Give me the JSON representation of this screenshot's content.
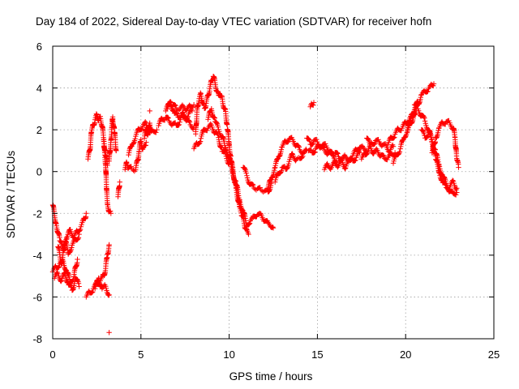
{
  "chart_data": {
    "type": "scatter",
    "title": "Day 184 of 2022, Sidereal Day-to-day VTEC variation (SDTVAR) for receiver hofn",
    "xlabel": "GPS time / hours",
    "ylabel": "SDTVAR / TECUs",
    "xlim": [
      0,
      25
    ],
    "ylim": [
      -8,
      6
    ],
    "xticks": [
      0,
      5,
      10,
      15,
      20,
      25
    ],
    "yticks": [
      -8,
      -6,
      -4,
      -2,
      0,
      2,
      4,
      6
    ],
    "grid": true,
    "marker": "+",
    "color": "#ff0000",
    "segments": [
      [
        [
          0.0,
          -1.6
        ],
        [
          0.2,
          -2.5
        ],
        [
          0.4,
          -3.3
        ],
        [
          0.6,
          -3.8
        ],
        [
          0.8,
          -3.2
        ],
        [
          1.0,
          -2.8
        ],
        [
          1.2,
          -3.1
        ],
        [
          1.4,
          -2.9
        ],
        [
          1.6,
          -2.6
        ],
        [
          1.8,
          -2.3
        ],
        [
          1.9,
          -2.0
        ]
      ],
      [
        [
          0.0,
          -4.8
        ],
        [
          0.2,
          -4.6
        ],
        [
          0.4,
          -4.4
        ],
        [
          0.6,
          -4.3
        ],
        [
          0.8,
          -4.8
        ],
        [
          1.0,
          -5.3
        ],
        [
          1.2,
          -5.0
        ],
        [
          1.4,
          -4.2
        ]
      ],
      [
        [
          0.1,
          -5.1
        ],
        [
          0.3,
          -4.9
        ],
        [
          0.5,
          -5.2
        ],
        [
          0.7,
          -4.9
        ],
        [
          0.9,
          -5.4
        ],
        [
          1.1,
          -5.7
        ],
        [
          1.3,
          -5.1
        ],
        [
          1.5,
          -5.5
        ]
      ],
      [
        [
          0.3,
          -3.6
        ],
        [
          0.5,
          -4.4
        ],
        [
          0.7,
          -3.3
        ],
        [
          0.9,
          -3.9
        ],
        [
          1.1,
          -3.5
        ],
        [
          1.3,
          -3.3
        ],
        [
          1.5,
          -3.0
        ]
      ],
      [
        [
          1.9,
          -6.0
        ],
        [
          2.1,
          -5.8
        ],
        [
          2.3,
          -5.6
        ],
        [
          2.5,
          -5.4
        ],
        [
          2.7,
          -5.2
        ],
        [
          2.9,
          -5.0
        ],
        [
          3.0,
          -4.6
        ],
        [
          3.1,
          -4.0
        ],
        [
          3.2,
          -3.5
        ]
      ],
      [
        [
          2.4,
          -5.6
        ],
        [
          2.6,
          -5.1
        ],
        [
          2.8,
          -5.6
        ],
        [
          3.0,
          -5.5
        ],
        [
          3.2,
          -5.9
        ]
      ],
      [
        [
          3.2,
          -7.7
        ]
      ],
      [
        [
          2.0,
          0.6
        ],
        [
          2.1,
          1.0
        ],
        [
          2.2,
          1.9
        ],
        [
          2.3,
          2.2
        ],
        [
          2.4,
          2.5
        ],
        [
          2.5,
          2.7
        ],
        [
          2.6,
          2.5
        ],
        [
          2.7,
          2.6
        ],
        [
          2.8,
          2.2
        ],
        [
          2.9,
          1.5
        ],
        [
          3.0,
          0.8
        ],
        [
          3.1,
          0.3
        ]
      ],
      [
        [
          2.9,
          1.2
        ],
        [
          3.0,
          0.4
        ],
        [
          3.05,
          -0.8
        ],
        [
          3.1,
          -1.5
        ],
        [
          3.2,
          -1.9
        ],
        [
          3.3,
          -2.0
        ]
      ],
      [
        [
          3.2,
          0.5
        ],
        [
          3.3,
          1.5
        ],
        [
          3.35,
          2.1
        ],
        [
          3.4,
          2.6
        ],
        [
          3.5,
          1.9
        ],
        [
          3.6,
          1.0
        ]
      ],
      [
        [
          3.7,
          -1.2
        ],
        [
          3.8,
          -0.5
        ]
      ],
      [
        [
          4.1,
          0.1
        ],
        [
          4.2,
          0.4
        ],
        [
          4.3,
          0.2
        ],
        [
          4.5,
          0.1
        ],
        [
          4.7,
          0.1
        ],
        [
          4.8,
          0.5
        ],
        [
          4.9,
          1.0
        ],
        [
          5.0,
          1.5
        ],
        [
          5.1,
          1.1
        ],
        [
          5.2,
          1.2
        ],
        [
          5.3,
          1.4
        ]
      ],
      [
        [
          4.3,
          0.8
        ],
        [
          4.5,
          1.3
        ],
        [
          4.7,
          1.7
        ],
        [
          4.9,
          2.0
        ],
        [
          5.1,
          2.2
        ],
        [
          5.3,
          2.3
        ],
        [
          5.5,
          1.9
        ],
        [
          5.7,
          1.9
        ],
        [
          5.9,
          2.0
        ]
      ],
      [
        [
          5.2,
          1.6
        ],
        [
          5.3,
          2.1
        ],
        [
          5.4,
          1.8
        ],
        [
          5.5,
          2.3
        ],
        [
          5.6,
          2.0
        ]
      ],
      [
        [
          5.5,
          2.9
        ]
      ],
      [
        [
          6.0,
          2.2
        ],
        [
          6.2,
          2.5
        ],
        [
          6.4,
          2.6
        ],
        [
          6.6,
          2.4
        ],
        [
          6.8,
          2.3
        ],
        [
          7.0,
          2.2
        ],
        [
          7.2,
          2.4
        ],
        [
          7.4,
          2.8
        ],
        [
          7.6,
          2.5
        ],
        [
          7.8,
          2.2
        ],
        [
          8.0,
          2.1
        ]
      ],
      [
        [
          6.4,
          2.9
        ],
        [
          6.6,
          3.2
        ],
        [
          6.8,
          3.2
        ],
        [
          7.0,
          3.0
        ],
        [
          7.2,
          3.0
        ],
        [
          7.4,
          3.1
        ],
        [
          7.6,
          3.0
        ],
        [
          7.8,
          3.1
        ],
        [
          8.0,
          3.2
        ]
      ],
      [
        [
          6.5,
          3.0
        ],
        [
          6.7,
          3.3
        ],
        [
          6.9,
          2.8
        ],
        [
          7.1,
          2.6
        ],
        [
          7.3,
          2.7
        ],
        [
          7.5,
          2.5
        ],
        [
          7.7,
          2.8
        ],
        [
          7.9,
          2.9
        ]
      ],
      [
        [
          8.0,
          1.1
        ],
        [
          8.2,
          1.3
        ],
        [
          8.4,
          1.6
        ],
        [
          8.6,
          2.0
        ],
        [
          8.8,
          2.1
        ],
        [
          9.0,
          2.2
        ],
        [
          9.2,
          1.9
        ],
        [
          9.4,
          1.6
        ],
        [
          9.6,
          1.0
        ],
        [
          9.8,
          0.8
        ],
        [
          10.0,
          0.4
        ]
      ],
      [
        [
          8.1,
          1.8
        ],
        [
          8.2,
          3.1
        ],
        [
          8.3,
          3.5
        ],
        [
          8.4,
          3.7
        ],
        [
          8.5,
          3.3
        ],
        [
          8.6,
          3.0
        ],
        [
          8.7,
          3.3
        ],
        [
          8.8,
          3.6
        ],
        [
          8.9,
          4.0
        ],
        [
          9.0,
          4.3
        ],
        [
          9.1,
          4.6
        ],
        [
          9.2,
          4.2
        ],
        [
          9.3,
          3.9
        ],
        [
          9.4,
          3.6
        ],
        [
          9.5,
          3.7
        ],
        [
          9.6,
          3.5
        ],
        [
          9.7,
          3.1
        ],
        [
          9.8,
          2.8
        ],
        [
          9.9,
          2.1
        ],
        [
          10.0,
          1.3
        ],
        [
          10.1,
          0.6
        ],
        [
          10.2,
          0.1
        ],
        [
          10.3,
          -0.4
        ],
        [
          10.4,
          -0.9
        ],
        [
          10.5,
          -1.3
        ],
        [
          10.6,
          -1.8
        ],
        [
          10.7,
          -2.0
        ],
        [
          10.8,
          -2.3
        ],
        [
          10.9,
          -2.6
        ],
        [
          11.0,
          -2.9
        ],
        [
          11.1,
          -3.0
        ]
      ],
      [
        [
          8.8,
          2.5
        ],
        [
          9.0,
          3.0
        ],
        [
          9.2,
          2.4
        ],
        [
          9.4,
          2.0
        ],
        [
          9.6,
          1.7
        ],
        [
          9.8,
          1.1
        ],
        [
          10.0,
          0.7
        ],
        [
          10.2,
          0.0
        ],
        [
          10.4,
          -0.6
        ],
        [
          10.6,
          -1.4
        ],
        [
          10.8,
          -1.9
        ],
        [
          11.0,
          -2.6
        ],
        [
          11.2,
          -2.3
        ],
        [
          11.4,
          -2.2
        ],
        [
          11.6,
          -2.0
        ],
        [
          11.8,
          -2.1
        ],
        [
          12.0,
          -2.3
        ],
        [
          12.2,
          -2.5
        ],
        [
          12.4,
          -2.6
        ],
        [
          12.5,
          -2.7
        ]
      ],
      [
        [
          10.8,
          0.2
        ],
        [
          11.0,
          -0.2
        ],
        [
          11.2,
          -0.6
        ],
        [
          11.4,
          -0.8
        ],
        [
          11.6,
          -0.8
        ],
        [
          11.8,
          -0.9
        ],
        [
          12.0,
          -0.9
        ],
        [
          12.2,
          -1.0
        ],
        [
          12.4,
          -0.5
        ]
      ],
      [
        [
          12.2,
          -0.8
        ],
        [
          12.4,
          -0.3
        ],
        [
          12.6,
          0.2
        ],
        [
          12.8,
          0.7
        ],
        [
          13.0,
          1.2
        ],
        [
          13.2,
          1.4
        ],
        [
          13.4,
          1.6
        ],
        [
          13.6,
          1.5
        ],
        [
          13.8,
          1.3
        ],
        [
          14.0,
          1.0
        ],
        [
          14.2,
          0.9
        ]
      ],
      [
        [
          12.6,
          -0.5
        ],
        [
          12.8,
          -0.1
        ],
        [
          13.0,
          0.2
        ],
        [
          13.2,
          0.1
        ],
        [
          13.4,
          0.5
        ],
        [
          13.6,
          0.8
        ],
        [
          13.8,
          0.6
        ],
        [
          14.0,
          0.6
        ],
        [
          14.2,
          0.9
        ],
        [
          14.4,
          1.0
        ]
      ],
      [
        [
          14.4,
          1.6
        ],
        [
          14.6,
          1.3
        ],
        [
          14.8,
          1.5
        ],
        [
          15.0,
          1.4
        ],
        [
          15.2,
          1.2
        ],
        [
          15.4,
          1.0
        ],
        [
          15.6,
          0.9
        ],
        [
          15.8,
          0.8
        ],
        [
          16.0,
          0.8
        ]
      ],
      [
        [
          14.5,
          1.0
        ],
        [
          14.7,
          0.9
        ],
        [
          14.9,
          1.1
        ],
        [
          15.1,
          1.2
        ],
        [
          15.3,
          1.3
        ],
        [
          15.5,
          1.2
        ],
        [
          15.7,
          1.0
        ],
        [
          15.9,
          0.7
        ],
        [
          16.1,
          0.5
        ]
      ],
      [
        [
          14.6,
          3.1
        ],
        [
          14.7,
          3.2
        ],
        [
          14.8,
          3.3
        ]
      ],
      [
        [
          15.4,
          0.1
        ],
        [
          15.6,
          0.3
        ],
        [
          15.8,
          0.2
        ],
        [
          16.0,
          0.4
        ],
        [
          16.2,
          0.3
        ],
        [
          16.4,
          0.5
        ],
        [
          16.6,
          0.2
        ],
        [
          16.8,
          0.5
        ],
        [
          17.0,
          0.8
        ],
        [
          17.2,
          1.0
        ],
        [
          17.4,
          1.2
        ],
        [
          17.6,
          1.1
        ],
        [
          17.8,
          1.0
        ]
      ],
      [
        [
          16.0,
          0.9
        ],
        [
          16.2,
          0.7
        ],
        [
          16.4,
          0.6
        ],
        [
          16.6,
          0.7
        ],
        [
          16.8,
          0.6
        ],
        [
          17.0,
          0.5
        ],
        [
          17.2,
          0.7
        ],
        [
          17.4,
          0.9
        ]
      ],
      [
        [
          17.5,
          0.6
        ],
        [
          17.7,
          0.8
        ],
        [
          17.9,
          1.1
        ],
        [
          18.1,
          1.3
        ],
        [
          18.3,
          1.5
        ],
        [
          18.5,
          1.4
        ],
        [
          18.7,
          1.3
        ],
        [
          18.9,
          1.2
        ],
        [
          19.1,
          1.0
        ],
        [
          19.3,
          1.2
        ]
      ],
      [
        [
          17.8,
          1.6
        ],
        [
          18.0,
          1.2
        ],
        [
          18.2,
          0.9
        ],
        [
          18.4,
          1.0
        ],
        [
          18.6,
          0.8
        ],
        [
          18.8,
          0.6
        ],
        [
          19.0,
          0.7
        ],
        [
          19.2,
          0.8
        ],
        [
          19.4,
          0.9
        ]
      ],
      [
        [
          19.0,
          1.3
        ],
        [
          19.2,
          1.6
        ],
        [
          19.4,
          1.8
        ],
        [
          19.6,
          2.0
        ],
        [
          19.8,
          2.1
        ],
        [
          20.0,
          2.3
        ],
        [
          20.2,
          2.5
        ],
        [
          20.4,
          2.7
        ],
        [
          20.6,
          2.9
        ]
      ],
      [
        [
          19.3,
          0.4
        ],
        [
          19.5,
          0.8
        ],
        [
          19.7,
          1.1
        ],
        [
          19.9,
          1.6
        ],
        [
          20.1,
          2.0
        ],
        [
          20.3,
          2.6
        ],
        [
          20.5,
          3.0
        ],
        [
          20.7,
          3.3
        ]
      ],
      [
        [
          20.1,
          1.9
        ],
        [
          20.3,
          2.3
        ],
        [
          20.5,
          2.8
        ],
        [
          20.7,
          3.2
        ],
        [
          20.9,
          3.7
        ],
        [
          21.1,
          3.8
        ],
        [
          21.3,
          4.0
        ],
        [
          21.5,
          4.1
        ],
        [
          21.6,
          4.2
        ]
      ],
      [
        [
          20.5,
          3.2
        ],
        [
          20.7,
          3.0
        ],
        [
          20.9,
          2.7
        ],
        [
          21.1,
          2.4
        ],
        [
          21.3,
          2.0
        ],
        [
          21.5,
          1.5
        ],
        [
          21.7,
          0.9
        ],
        [
          21.9,
          0.3
        ],
        [
          22.1,
          -0.2
        ],
        [
          22.3,
          -0.6
        ],
        [
          22.5,
          -0.9
        ],
        [
          22.7,
          -1.1
        ],
        [
          22.9,
          -1.0
        ]
      ],
      [
        [
          20.9,
          2.0
        ],
        [
          21.1,
          1.6
        ],
        [
          21.3,
          1.9
        ],
        [
          21.5,
          1.4
        ],
        [
          21.7,
          0.6
        ],
        [
          21.9,
          0.0
        ],
        [
          22.1,
          -0.5
        ],
        [
          22.3,
          -0.8
        ],
        [
          22.5,
          -0.7
        ],
        [
          22.7,
          -0.5
        ],
        [
          22.9,
          -0.8
        ]
      ],
      [
        [
          21.5,
          0.9
        ],
        [
          21.7,
          1.6
        ],
        [
          21.9,
          2.1
        ],
        [
          22.1,
          2.3
        ],
        [
          22.3,
          2.4
        ],
        [
          22.5,
          2.3
        ],
        [
          22.7,
          2.1
        ],
        [
          22.8,
          1.6
        ],
        [
          22.9,
          0.6
        ],
        [
          23.0,
          0.2
        ]
      ]
    ]
  }
}
